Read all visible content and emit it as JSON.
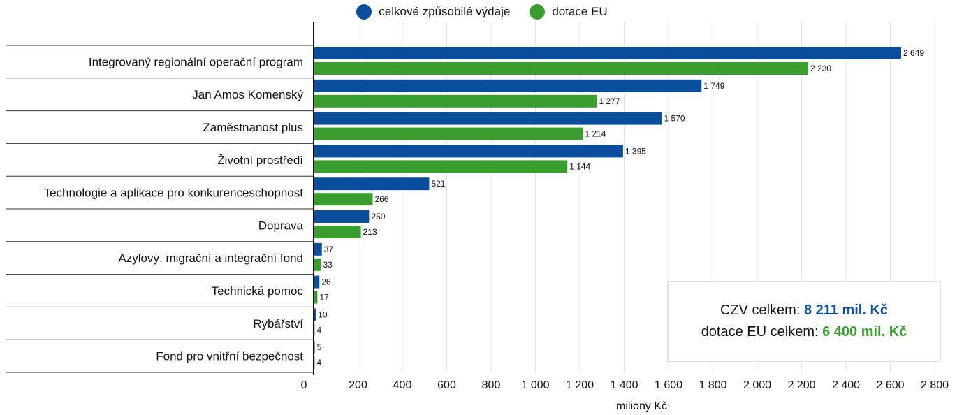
{
  "colors": {
    "czv": "#0b4f9c",
    "eu": "#3a9e2f"
  },
  "legend": {
    "czv_label": "celkové způsobilé výdaje",
    "eu_label": "dotace EU"
  },
  "summary": {
    "czv_label": "CZV celkem:",
    "czv_value": "8 211 mil. Kč",
    "eu_label": "dotace EU celkem:",
    "eu_value": "6 400 mil. Kč"
  },
  "chart_data": {
    "type": "bar",
    "orientation": "horizontal",
    "xlabel": "miliony Kč",
    "xlim": [
      0,
      2800
    ],
    "xticks": [
      0,
      200,
      400,
      600,
      800,
      1000,
      1200,
      1400,
      1600,
      1800,
      2000,
      2200,
      2400,
      2600,
      2800
    ],
    "xtick_labels": [
      "0",
      "200",
      "400",
      "600",
      "800",
      "1 000",
      "1 200",
      "1 400",
      "1 600",
      "1 800",
      "2 000",
      "2 200",
      "2 400",
      "2 600",
      "2 800"
    ],
    "grid": "vertical",
    "legend_position": "top-center",
    "categories": [
      "Integrovaný regionální operační program",
      "Jan Amos Komenský",
      "Zaměstnanost plus",
      "Životní prostředí",
      "Technologie a aplikace pro konkurenceschopnost",
      "Doprava",
      "Azylový, migrační a integrační fond",
      "Technická pomoc",
      "Rybářství",
      "Fond pro vnitřní bezpečnost"
    ],
    "series": [
      {
        "name": "celkové způsobilé výdaje",
        "values": [
          2649,
          1749,
          1570,
          1395,
          521,
          250,
          37,
          26,
          10,
          5
        ],
        "labels": [
          "2 649",
          "1 749",
          "1 570",
          "1 395",
          "521",
          "250",
          "37",
          "26",
          "10",
          "5"
        ]
      },
      {
        "name": "dotace EU",
        "values": [
          2230,
          1277,
          1214,
          1144,
          266,
          213,
          33,
          17,
          4,
          4
        ],
        "labels": [
          "2 230",
          "1 277",
          "1 214",
          "1 144",
          "266",
          "213",
          "33",
          "17",
          "4",
          "4"
        ]
      }
    ]
  }
}
